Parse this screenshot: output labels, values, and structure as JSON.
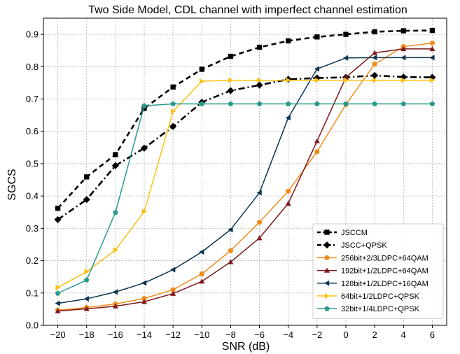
{
  "chart_data": {
    "type": "line",
    "title": "Two Side Model, CDL channel with imperfect channel estimation",
    "xlabel": "SNR (dB)",
    "ylabel": "SGCS",
    "xlim": [
      -21,
      7
    ],
    "ylim": [
      0,
      0.95
    ],
    "x": [
      -20,
      -18,
      -16,
      -14,
      -12,
      -10,
      -8,
      -6,
      -4,
      -2,
      0,
      2,
      4,
      6
    ],
    "xticks": [
      -20,
      -18,
      -16,
      -14,
      -12,
      -10,
      -8,
      -6,
      -4,
      -2,
      0,
      2,
      4,
      6
    ],
    "xtick_labels": [
      "−20",
      "−18",
      "−16",
      "−14",
      "−12",
      "−10",
      "−8",
      "−6",
      "−4",
      "−2",
      "0",
      "2",
      "4",
      "6"
    ],
    "yticks": [
      0.0,
      0.1,
      0.2,
      0.3,
      0.4,
      0.5,
      0.6,
      0.7,
      0.8,
      0.9
    ],
    "ytick_labels": [
      "0.0",
      "0.1",
      "0.2",
      "0.3",
      "0.4",
      "0.5",
      "0.6",
      "0.7",
      "0.8",
      "0.9"
    ],
    "grid": true,
    "legend_position": "bottom-right",
    "series": [
      {
        "name": "JSCCM",
        "color": "#000000",
        "marker": "square",
        "dash": "dashed",
        "values": [
          0.362,
          0.459,
          0.528,
          0.671,
          0.737,
          0.792,
          0.832,
          0.86,
          0.88,
          0.892,
          0.9,
          0.908,
          0.911,
          0.912
        ]
      },
      {
        "name": "JSCC+QPSK",
        "color": "#000000",
        "marker": "diamond",
        "dash": "dashdot",
        "values": [
          0.327,
          0.389,
          0.494,
          0.548,
          0.615,
          0.69,
          0.726,
          0.743,
          0.761,
          0.765,
          0.767,
          0.773,
          0.768,
          0.767
        ]
      },
      {
        "name": "256bit+2/3LDPC+64QAM",
        "color": "#f28c1c",
        "marker": "circle",
        "dash": "solid",
        "values": [
          0.047,
          0.055,
          0.066,
          0.083,
          0.11,
          0.159,
          0.231,
          0.319,
          0.415,
          0.537,
          0.683,
          0.808,
          0.862,
          0.873
        ]
      },
      {
        "name": "192bit+1/2LDPC+64QAM",
        "color": "#7b1a1a",
        "marker": "triangle-up",
        "dash": "solid",
        "values": [
          0.044,
          0.051,
          0.059,
          0.073,
          0.098,
          0.136,
          0.196,
          0.27,
          0.377,
          0.57,
          0.767,
          0.843,
          0.855,
          0.855
        ]
      },
      {
        "name": "128bit+1/2LDPC+16QAM",
        "color": "#0d3550",
        "marker": "triangle-left",
        "dash": "solid",
        "values": [
          0.068,
          0.082,
          0.103,
          0.131,
          0.172,
          0.227,
          0.296,
          0.41,
          0.642,
          0.793,
          0.827,
          0.828,
          0.828,
          0.828
        ]
      },
      {
        "name": "64bit+1/2LDPC+QPSK",
        "color": "#fbc011",
        "marker": "triangle-right",
        "dash": "solid",
        "values": [
          0.117,
          0.166,
          0.233,
          0.352,
          0.662,
          0.755,
          0.758,
          0.758,
          0.758,
          0.758,
          0.758,
          0.758,
          0.758,
          0.758
        ]
      },
      {
        "name": "32bit+1/4LDPC+QPSK",
        "color": "#2a9a8c",
        "marker": "pentagon",
        "dash": "solid",
        "values": [
          0.099,
          0.14,
          0.349,
          0.679,
          0.685,
          0.685,
          0.685,
          0.685,
          0.685,
          0.685,
          0.685,
          0.685,
          0.685,
          0.685
        ]
      }
    ]
  }
}
